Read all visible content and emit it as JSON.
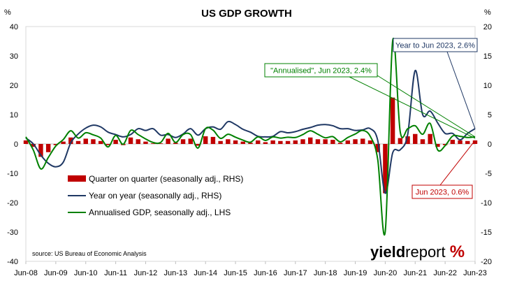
{
  "chart_data": {
    "type": "line",
    "title": "US GDP GROWTH",
    "left_axis_unit": "%",
    "right_axis_unit": "%",
    "left_ylim": [
      -40,
      40
    ],
    "right_ylim": [
      -20,
      20
    ],
    "left_ticks": [
      "40",
      "30",
      "20",
      "10",
      "0",
      "-10",
      "-20",
      "-30",
      "-40"
    ],
    "right_ticks": [
      "20",
      "15",
      "10",
      "5",
      "0",
      "-5",
      "-10",
      "-15",
      "-20"
    ],
    "x_tick_labels": [
      "Jun-08",
      "Jun-09",
      "Jun-10",
      "Jun-11",
      "Jun-12",
      "Jun-13",
      "Jun-14",
      "Jun-15",
      "Jun-16",
      "Jun-17",
      "Jun-18",
      "Jun-19",
      "Jun-20",
      "Jun-21",
      "Jun-22",
      "Jun-23"
    ],
    "quarters": [
      "Jun-08",
      "Sep-08",
      "Dec-08",
      "Mar-09",
      "Jun-09",
      "Sep-09",
      "Dec-09",
      "Mar-10",
      "Jun-10",
      "Sep-10",
      "Dec-10",
      "Mar-11",
      "Jun-11",
      "Sep-11",
      "Dec-11",
      "Mar-12",
      "Jun-12",
      "Sep-12",
      "Dec-12",
      "Mar-13",
      "Jun-13",
      "Sep-13",
      "Dec-13",
      "Mar-14",
      "Jun-14",
      "Sep-14",
      "Dec-14",
      "Mar-15",
      "Jun-15",
      "Sep-15",
      "Dec-15",
      "Mar-16",
      "Jun-16",
      "Sep-16",
      "Dec-16",
      "Mar-17",
      "Jun-17",
      "Sep-17",
      "Dec-17",
      "Mar-18",
      "Jun-18",
      "Sep-18",
      "Dec-18",
      "Mar-19",
      "Jun-19",
      "Sep-19",
      "Dec-19",
      "Mar-20",
      "Jun-20",
      "Sep-20",
      "Dec-20",
      "Mar-21",
      "Jun-21",
      "Sep-21",
      "Dec-21",
      "Mar-22",
      "Jun-22",
      "Sep-22",
      "Dec-22",
      "Mar-23",
      "Jun-23"
    ],
    "series": [
      {
        "name": "Quarter on quarter (seasonally adj., RHS)",
        "axis": "right",
        "kind": "bar",
        "color": "#c00000",
        "values": [
          0.6,
          -0.5,
          -2.2,
          -1.4,
          -0.2,
          0.4,
          1.1,
          0.5,
          0.9,
          0.8,
          0.5,
          -0.2,
          0.7,
          -0.2,
          1.1,
          0.8,
          0.4,
          0.1,
          0.1,
          0.9,
          0.2,
          0.8,
          0.9,
          -0.3,
          1.3,
          1.2,
          0.5,
          0.8,
          0.6,
          0.4,
          0.2,
          0.6,
          0.3,
          0.6,
          0.5,
          0.5,
          0.6,
          0.8,
          1.1,
          0.8,
          0.8,
          0.7,
          0.2,
          0.6,
          0.8,
          0.9,
          0.6,
          -1.4,
          -8.4,
          7.9,
          1.0,
          1.3,
          1.7,
          0.8,
          1.7,
          -0.5,
          -0.2,
          0.7,
          0.6,
          0.5,
          0.6
        ]
      },
      {
        "name": "Year on year (seasonally adj., RHS)",
        "axis": "right",
        "kind": "line",
        "color": "#1f3864",
        "values": [
          1.0,
          0.0,
          -1.9,
          -3.3,
          -3.9,
          -3.1,
          0.2,
          1.7,
          2.7,
          3.2,
          2.9,
          2.0,
          1.6,
          1.2,
          1.6,
          2.6,
          2.3,
          2.6,
          1.5,
          1.6,
          1.1,
          1.7,
          2.6,
          1.5,
          2.6,
          2.9,
          2.5,
          3.8,
          3.3,
          2.5,
          2.0,
          1.3,
          1.2,
          1.3,
          2.1,
          1.9,
          2.1,
          2.5,
          2.8,
          3.2,
          3.3,
          3.1,
          2.6,
          2.6,
          2.3,
          2.4,
          2.6,
          0.6,
          -8.4,
          -1.5,
          -1.0,
          1.6,
          12.5,
          5.0,
          5.6,
          3.6,
          1.8,
          1.8,
          0.7,
          1.8,
          2.6
        ]
      },
      {
        "name": "Annualised GDP, seasonally adj., LHS",
        "axis": "left",
        "kind": "line",
        "color": "#008000",
        "values": [
          2.4,
          -2.1,
          -8.5,
          -4.6,
          -0.7,
          1.5,
          4.5,
          2.0,
          3.8,
          3.1,
          2.0,
          -1.0,
          2.9,
          -0.1,
          4.6,
          3.2,
          1.7,
          0.5,
          0.5,
          3.6,
          0.5,
          3.2,
          3.2,
          -1.4,
          5.2,
          4.7,
          1.9,
          3.3,
          2.3,
          1.3,
          0.6,
          2.4,
          1.2,
          2.4,
          2.0,
          2.3,
          2.2,
          3.2,
          4.5,
          3.3,
          2.1,
          2.5,
          0.7,
          2.2,
          3.4,
          4.6,
          2.6,
          -5.3,
          -29.9,
          35.3,
          4.2,
          5.2,
          6.2,
          3.3,
          7.0,
          -2.0,
          -0.6,
          2.7,
          2.6,
          2.2,
          2.4
        ]
      }
    ],
    "annotations": [
      {
        "text": "Year to Jun 2023, 2.6%",
        "color": "#1f3864"
      },
      {
        "text": "\"Annualised\", Jun 2023, 2.4%",
        "color": "#008000"
      },
      {
        "text": "Jun 2023, 0.6%",
        "color": "#c00000"
      }
    ],
    "legend_position": "bottom-left",
    "grid": false,
    "source": "source: US Bureau of Economic Analysis",
    "logo": "yieldreport %"
  }
}
